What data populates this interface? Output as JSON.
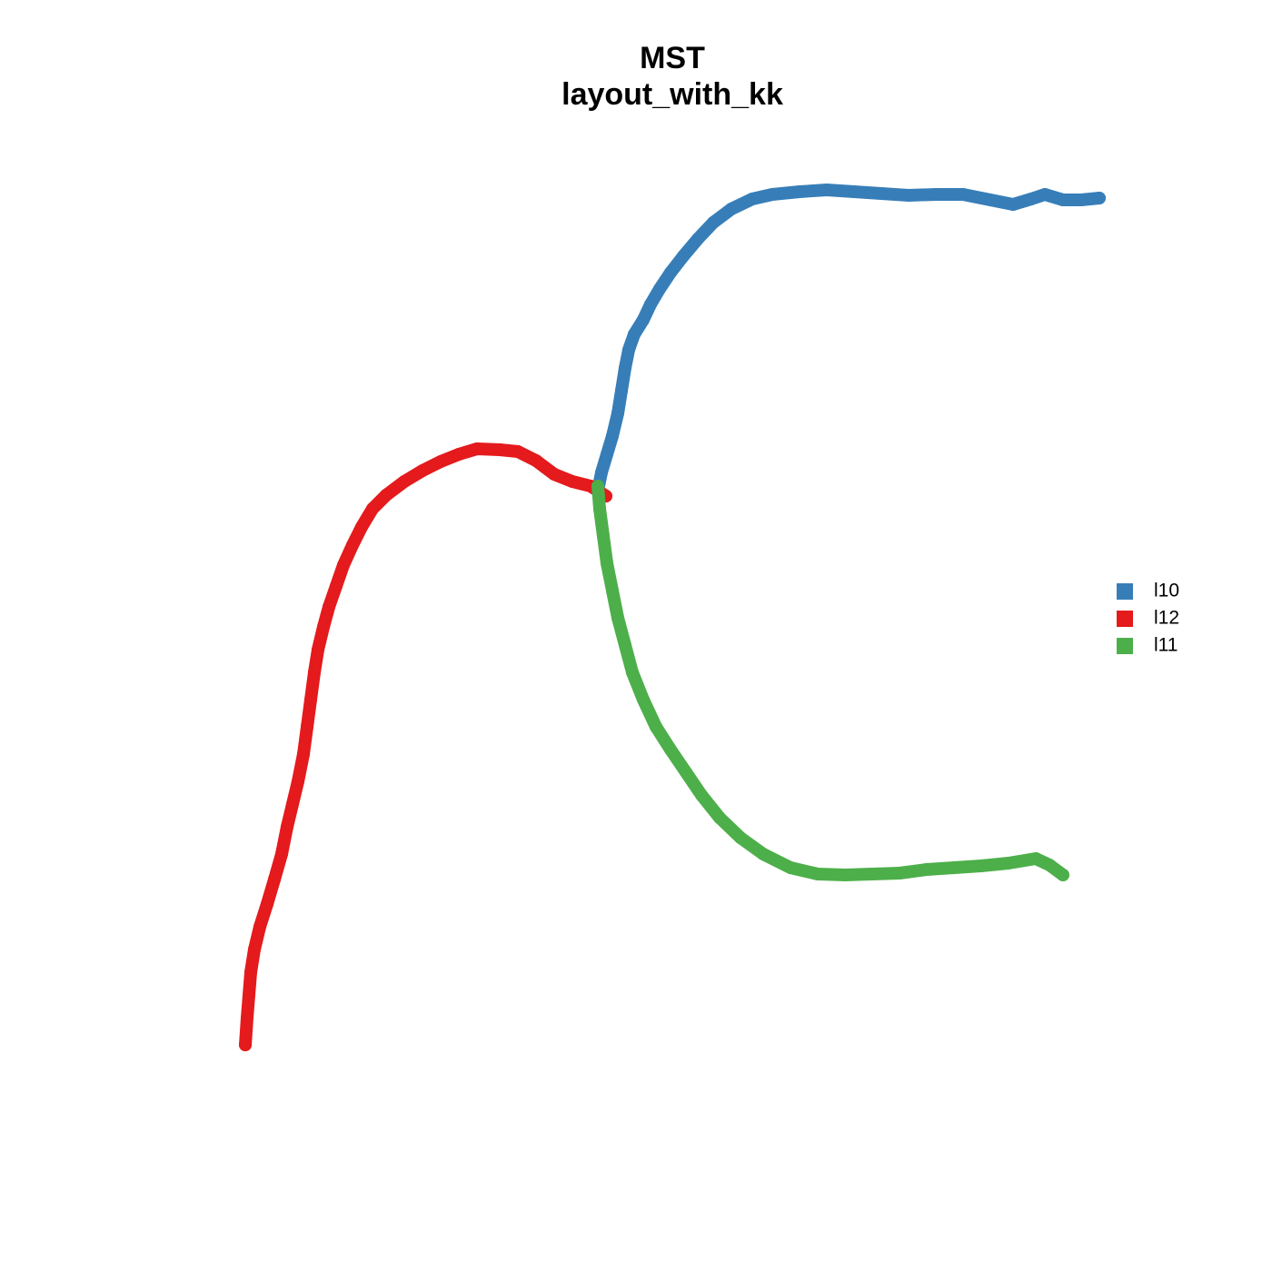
{
  "chart_data": {
    "type": "scatter",
    "title": "MST",
    "subtitle": "layout_with_kk",
    "xlim": [
      0,
      140
    ],
    "ylim": [
      0,
      140
    ],
    "legend_position": "right",
    "series": [
      {
        "name": "l10",
        "color": "#377eb8",
        "x": [
          65.8,
          66.2,
          66.8,
          67.4,
          68.0,
          68.4,
          68.8,
          69.2,
          69.8,
          70.8,
          71.6,
          72.6,
          73.8,
          75.2,
          76.8,
          78.5,
          80.5,
          82.8,
          85.0,
          88.0,
          91.0,
          94.0,
          97.0,
          100.0,
          103.0,
          106.0,
          109.0,
          111.5,
          113.5,
          115.0,
          117.0,
          119.0,
          121.0
        ],
        "values": [
          86.0,
          88.0,
          90.0,
          92.0,
          94.5,
          97.0,
          99.5,
          101.5,
          103.2,
          104.8,
          106.5,
          108.2,
          110.0,
          111.8,
          113.7,
          115.5,
          117.0,
          118.1,
          118.6,
          118.9,
          119.1,
          118.9,
          118.7,
          118.5,
          118.6,
          118.6,
          118.0,
          117.5,
          118.1,
          118.6,
          118.0,
          118.0,
          118.2
        ]
      },
      {
        "name": "l12",
        "color": "#e41a1c",
        "x": [
          66.7,
          65.0,
          63.0,
          61.0,
          59.0,
          57.0,
          55.0,
          52.5,
          50.5,
          48.5,
          46.5,
          44.5,
          42.5,
          41.0,
          39.8,
          38.8,
          37.8,
          37.0,
          36.2,
          35.6,
          35.0,
          34.6,
          34.2,
          33.8,
          33.4,
          32.8,
          32.2,
          31.6,
          31.0,
          30.2,
          29.4,
          28.6,
          28.0,
          27.6,
          27.4,
          27.2,
          27.0
        ],
        "values": [
          85.4,
          86.5,
          87.0,
          87.8,
          89.3,
          90.3,
          90.5,
          90.6,
          90.0,
          89.2,
          88.2,
          87.0,
          85.5,
          84.0,
          82.0,
          80.0,
          77.8,
          75.5,
          73.2,
          71.0,
          68.5,
          66.0,
          63.0,
          60.0,
          57.0,
          54.0,
          51.5,
          49.0,
          46.0,
          43.2,
          40.5,
          38.0,
          35.5,
          33.0,
          30.5,
          28.0,
          25.0
        ]
      },
      {
        "name": "l11",
        "color": "#4daf4a",
        "x": [
          65.8,
          66.0,
          66.4,
          66.8,
          67.4,
          68.0,
          68.8,
          69.6,
          70.8,
          72.2,
          73.8,
          75.5,
          77.2,
          79.2,
          81.5,
          84.0,
          87.0,
          90.0,
          93.0,
          96.0,
          99.0,
          102.0,
          105.0,
          108.0,
          111.0,
          114.0,
          115.5,
          117.0
        ],
        "values": [
          86.5,
          84.0,
          81.0,
          78.0,
          75.0,
          72.0,
          69.0,
          66.0,
          63.0,
          60.0,
          57.5,
          55.0,
          52.5,
          50.0,
          47.8,
          46.0,
          44.5,
          43.8,
          43.7,
          43.8,
          43.9,
          44.3,
          44.5,
          44.7,
          45.0,
          45.5,
          44.8,
          43.7
        ]
      }
    ]
  }
}
